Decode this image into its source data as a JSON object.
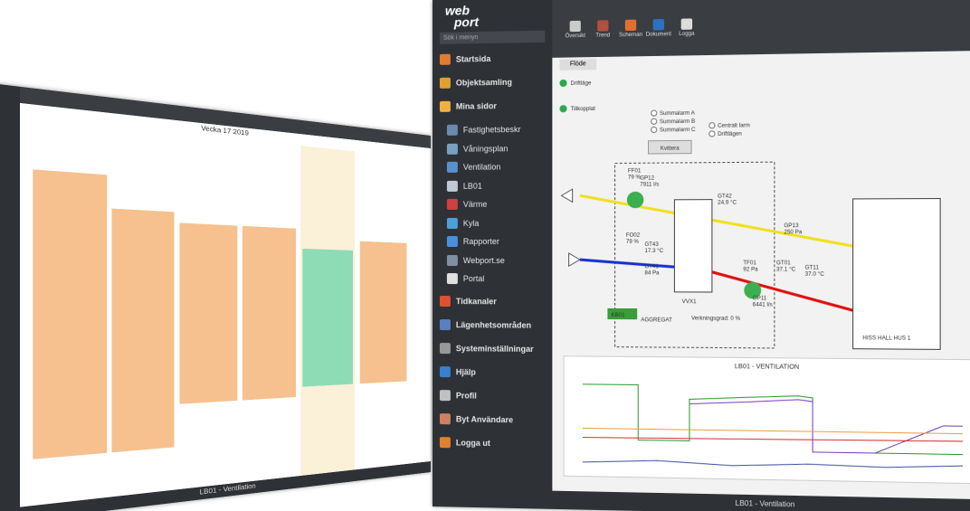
{
  "sidebar": {
    "logo_top": "web",
    "logo_bottom": "port",
    "search": "Sök i menyn",
    "items": [
      {
        "label": "Startsida",
        "level": 0
      },
      {
        "label": "Objektsamling",
        "level": 0
      },
      {
        "label": "Mina sidor",
        "level": 0
      },
      {
        "label": "Fastighetsbeskr",
        "level": 1
      },
      {
        "label": "Våningsplan",
        "level": 1
      },
      {
        "label": "Ventilation",
        "level": 1
      },
      {
        "label": "LB01",
        "level": 1
      },
      {
        "label": "Värme",
        "level": 1
      },
      {
        "label": "Kyla",
        "level": 1
      },
      {
        "label": "Rapporter",
        "level": 1
      },
      {
        "label": "Webport.se",
        "level": 1
      },
      {
        "label": "Portal",
        "level": 1
      },
      {
        "label": "Tidkanaler",
        "level": 0
      },
      {
        "label": "Lägenhetsområden",
        "level": 0
      },
      {
        "label": "Systeminställningar",
        "level": 0
      },
      {
        "label": "Hjälp",
        "level": 0
      },
      {
        "label": "Profil",
        "level": 0
      },
      {
        "label": "Byt Användare",
        "level": 0
      },
      {
        "label": "Logga ut",
        "level": 0
      }
    ]
  },
  "toolbar": {
    "tabs": [
      "Översikt",
      "Trend",
      "Scheman",
      "Dokument",
      "Logga"
    ],
    "subtab": "Flöde"
  },
  "status": [
    "Driftläge",
    "Tillkopplat"
  ],
  "alarms": [
    "Summalarm A",
    "Summalarm B",
    "Summalarm C"
  ],
  "ack": "Kvittera",
  "options": [
    "Centralt larm",
    "Driftlägen"
  ],
  "diagram": {
    "unit": "VVX1",
    "aggregate": "AGGREGAT",
    "badge": "KB01",
    "efficiency": "Verkningsgrad: 0 %",
    "hall": "HISS HALL",
    "house": "HUS 1",
    "labels": [
      {
        "tag": "FF01",
        "value": "79 %"
      },
      {
        "tag": "GP12",
        "value": "7911 l/s"
      },
      {
        "tag": "GT42",
        "value": "24.9 °C"
      },
      {
        "tag": "GT43",
        "value": "17.3 °C"
      },
      {
        "tag": "FO02",
        "value": "79 %"
      },
      {
        "tag": "GT41",
        "value": "84 Pa"
      },
      {
        "tag": "TF01",
        "value": "92 Pa"
      },
      {
        "tag": "GP11",
        "value": "6441 l/s"
      },
      {
        "tag": "GT01",
        "value": "37.1 °C"
      },
      {
        "tag": "GT11",
        "value": "37.0 °C"
      },
      {
        "tag": "GP13",
        "value": "250 Pa"
      }
    ]
  },
  "trend_title": "LB01 - VENTILATION",
  "footer": "LB01 - Ventilation",
  "calendar": {
    "title": "Vecka 17 2019",
    "footer": "LB01 - Ventilation"
  }
}
